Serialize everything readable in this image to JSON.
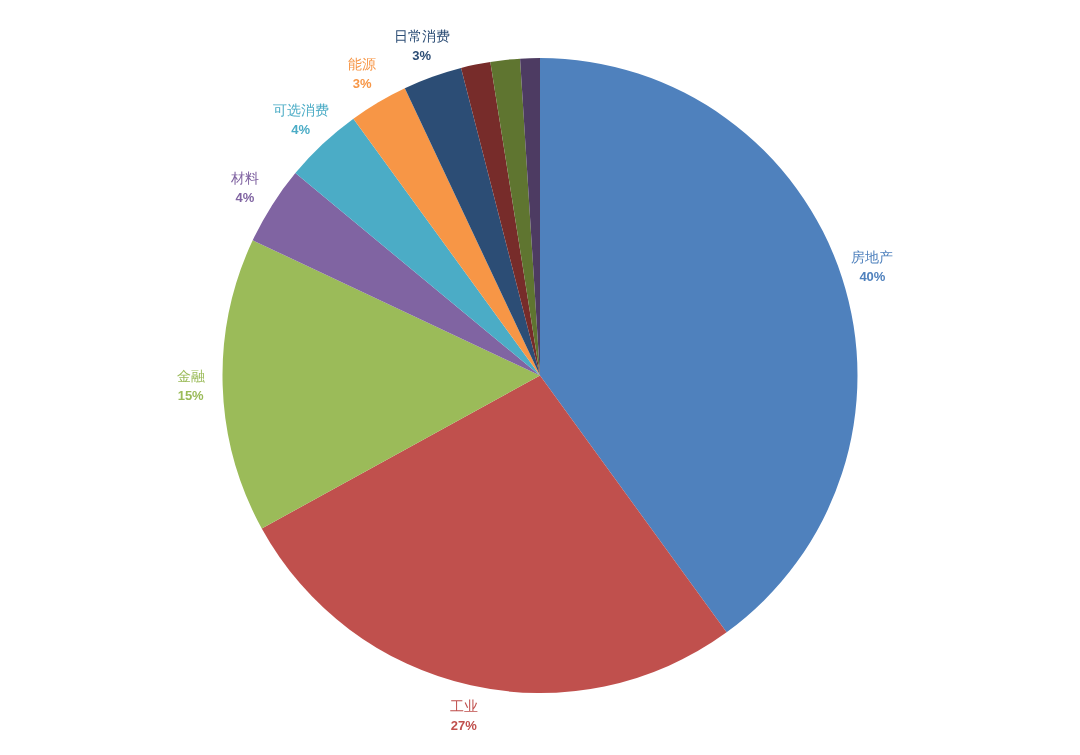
{
  "chart_data": {
    "type": "pie",
    "categories": [
      "房地产",
      "工业",
      "金融",
      "材料",
      "可选消费",
      "能源",
      "日常消费",
      null,
      null,
      null
    ],
    "values": [
      40,
      27,
      15,
      4,
      4,
      3,
      3,
      1.5,
      1.5,
      1
    ],
    "colors": [
      "#4f81bd",
      "#c0504d",
      "#9bbb59",
      "#8064a2",
      "#4bacc6",
      "#f79646",
      "#2c4d75",
      "#772c2a",
      "#5f7530",
      "#4d3b62"
    ],
    "value_labels": [
      "40%",
      "27%",
      "15%",
      "4%",
      "4%",
      "3%",
      "3%",
      null,
      null,
      null
    ]
  }
}
